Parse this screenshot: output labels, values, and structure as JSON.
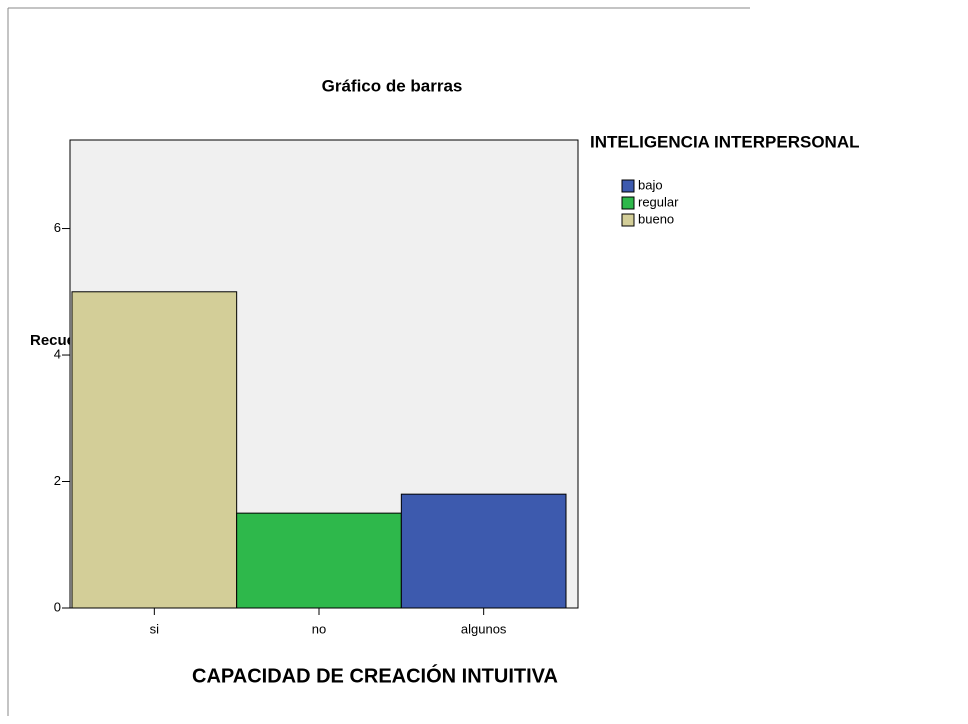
{
  "chart_data": {
    "type": "bar",
    "title": "Gráfico de barras",
    "x_label": "CAPACIDAD DE CREACIÓN INTUITIVA",
    "y_label": "Recuento",
    "legend_title": "INTELIGENCIA INTERPERSONAL",
    "categories": [
      "si",
      "no",
      "algunos"
    ],
    "series": [
      {
        "name": "bajo",
        "color": "#3d5aae",
        "values": [
          null,
          null,
          1.8
        ]
      },
      {
        "name": "regular",
        "color": "#2eb84b",
        "values": [
          null,
          1.5,
          null
        ]
      },
      {
        "name": "bueno",
        "color": "#d3ce98",
        "values": [
          5,
          null,
          null
        ]
      }
    ],
    "ylim": [
      0,
      7.4
    ],
    "yticks": [
      0,
      2,
      4,
      6
    ],
    "legend": "right"
  }
}
